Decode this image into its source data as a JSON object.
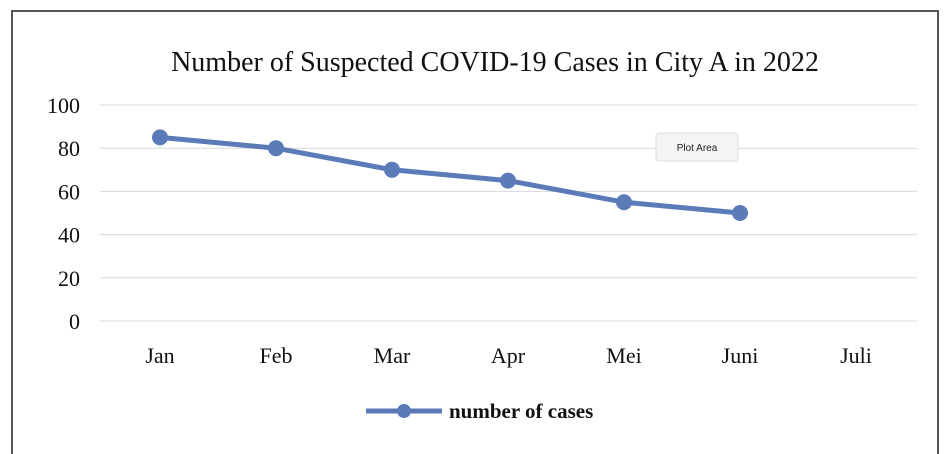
{
  "chart_data": {
    "type": "line",
    "title": "Number of Suspected COVID-19 Cases in City A in 2022",
    "categories": [
      "Jan",
      "Feb",
      "Mar",
      "Apr",
      "Mei",
      "Juni",
      "Juli"
    ],
    "series": [
      {
        "name": "number of cases",
        "values": [
          85,
          80,
          70,
          65,
          55,
          50,
          null
        ],
        "color": "#5b7ab8"
      }
    ],
    "y_ticks": [
      "0",
      "20",
      "40",
      "60",
      "80",
      "100"
    ],
    "ylim": [
      0,
      100
    ],
    "grid": true,
    "legend_position": "bottom",
    "hover_tooltip": "Plot Area"
  }
}
